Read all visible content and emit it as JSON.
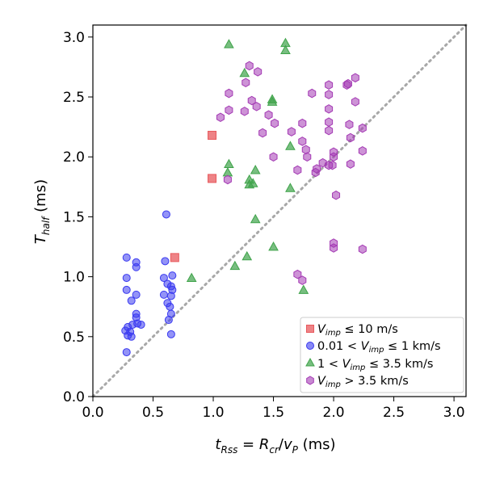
{
  "chart_data": {
    "type": "scatter",
    "xlabel": "t_Rss = R_cr/v_P (ms)",
    "ylabel": "T_half (ms)",
    "xlim": [
      0.0,
      3.1
    ],
    "ylim": [
      0.0,
      3.1
    ],
    "xticks": [
      "0.0",
      "0.5",
      "1.0",
      "1.5",
      "2.0",
      "2.5",
      "3.0"
    ],
    "yticks": [
      "0.0",
      "0.5",
      "1.0",
      "1.5",
      "2.0",
      "2.5",
      "3.0"
    ],
    "grid": false,
    "legend_position": "lower-right",
    "reference_line": {
      "style": "dotted",
      "color": "#a8a8a8",
      "from": [
        0,
        0
      ],
      "to": [
        3.1,
        3.1
      ]
    },
    "series": [
      {
        "name": "V_imp ≤ 10 m/s",
        "marker": "square",
        "color": "#e8595d",
        "points": [
          [
            0.99,
            2.18
          ],
          [
            0.99,
            1.82
          ],
          [
            0.68,
            1.16
          ]
        ]
      },
      {
        "name": "0.01 < V_imp ≤ 1 km/s",
        "marker": "circle",
        "color": "#3a3af0",
        "points": [
          [
            0.61,
            1.52
          ],
          [
            0.28,
            1.16
          ],
          [
            0.36,
            1.12
          ],
          [
            0.36,
            1.08
          ],
          [
            0.6,
            1.13
          ],
          [
            0.66,
            1.01
          ],
          [
            0.59,
            0.99
          ],
          [
            0.28,
            0.99
          ],
          [
            0.62,
            0.94
          ],
          [
            0.65,
            0.92
          ],
          [
            0.66,
            0.89
          ],
          [
            0.28,
            0.89
          ],
          [
            0.36,
            0.85
          ],
          [
            0.59,
            0.85
          ],
          [
            0.65,
            0.84
          ],
          [
            0.32,
            0.8
          ],
          [
            0.62,
            0.78
          ],
          [
            0.64,
            0.75
          ],
          [
            0.65,
            0.69
          ],
          [
            0.36,
            0.69
          ],
          [
            0.36,
            0.66
          ],
          [
            0.63,
            0.64
          ],
          [
            0.37,
            0.61
          ],
          [
            0.4,
            0.6
          ],
          [
            0.33,
            0.6
          ],
          [
            0.29,
            0.58
          ],
          [
            0.27,
            0.55
          ],
          [
            0.31,
            0.54
          ],
          [
            0.29,
            0.51
          ],
          [
            0.32,
            0.5
          ],
          [
            0.65,
            0.52
          ],
          [
            0.28,
            0.37
          ]
        ]
      },
      {
        "name": "1 < V_imp ≤ 3.5 km/s",
        "marker": "triangle",
        "color": "#3fa34a",
        "points": [
          [
            1.13,
            2.94
          ],
          [
            1.6,
            2.95
          ],
          [
            1.6,
            2.89
          ],
          [
            1.26,
            2.7
          ],
          [
            1.49,
            2.48
          ],
          [
            1.49,
            2.46
          ],
          [
            1.64,
            2.09
          ],
          [
            1.13,
            1.94
          ],
          [
            1.12,
            1.87
          ],
          [
            1.3,
            1.81
          ],
          [
            1.33,
            1.78
          ],
          [
            1.3,
            1.77
          ],
          [
            1.35,
            1.89
          ],
          [
            1.64,
            1.74
          ],
          [
            1.35,
            1.48
          ],
          [
            1.5,
            1.25
          ],
          [
            1.28,
            1.17
          ],
          [
            1.18,
            1.09
          ],
          [
            0.82,
            0.99
          ],
          [
            1.75,
            0.89
          ]
        ]
      },
      {
        "name": "V_imp > 3.5 km/s",
        "marker": "hexagon",
        "color": "#a43ab4",
        "points": [
          [
            1.3,
            2.76
          ],
          [
            1.37,
            2.71
          ],
          [
            1.27,
            2.62
          ],
          [
            1.13,
            2.53
          ],
          [
            1.32,
            2.47
          ],
          [
            1.36,
            2.42
          ],
          [
            1.13,
            2.39
          ],
          [
            1.26,
            2.38
          ],
          [
            1.06,
            2.33
          ],
          [
            1.46,
            2.35
          ],
          [
            1.41,
            2.2
          ],
          [
            1.51,
            2.28
          ],
          [
            1.65,
            2.21
          ],
          [
            1.74,
            2.28
          ],
          [
            1.82,
            2.53
          ],
          [
            1.96,
            2.6
          ],
          [
            1.96,
            2.52
          ],
          [
            1.96,
            2.4
          ],
          [
            2.11,
            2.6
          ],
          [
            2.12,
            2.61
          ],
          [
            2.18,
            2.66
          ],
          [
            2.18,
            2.46
          ],
          [
            1.96,
            2.29
          ],
          [
            2.13,
            2.27
          ],
          [
            1.96,
            2.22
          ],
          [
            2.24,
            2.24
          ],
          [
            2.14,
            2.16
          ],
          [
            1.74,
            2.13
          ],
          [
            1.77,
            2.06
          ],
          [
            2.0,
            2.04
          ],
          [
            1.5,
            2.0
          ],
          [
            1.78,
            2.0
          ],
          [
            2.0,
            2.0
          ],
          [
            2.24,
            2.05
          ],
          [
            1.12,
            1.81
          ],
          [
            1.7,
            1.89
          ],
          [
            1.85,
            1.87
          ],
          [
            1.86,
            1.9
          ],
          [
            1.91,
            1.95
          ],
          [
            1.96,
            1.93
          ],
          [
            1.99,
            1.93
          ],
          [
            2.14,
            1.94
          ],
          [
            2.02,
            1.68
          ],
          [
            2.0,
            1.28
          ],
          [
            2.0,
            1.24
          ],
          [
            2.24,
            1.23
          ],
          [
            1.7,
            1.02
          ],
          [
            1.74,
            0.97
          ]
        ]
      }
    ]
  }
}
